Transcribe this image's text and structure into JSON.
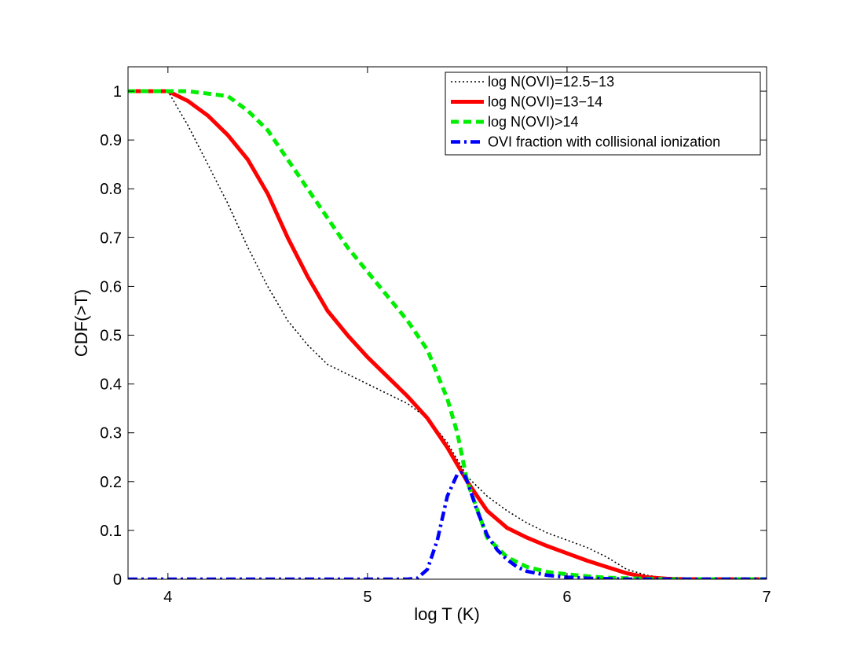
{
  "chart_data": {
    "type": "line",
    "title": "",
    "xlabel": "log T (K)",
    "ylabel": "CDF(>T)",
    "xlim": [
      3.8,
      7
    ],
    "ylim": [
      0,
      1.05
    ],
    "xticks": [
      4,
      5,
      6,
      7
    ],
    "xtick_labels": [
      "4",
      "5",
      "6",
      "7"
    ],
    "yticks": [
      0,
      0.1,
      0.2,
      0.3,
      0.4,
      0.5,
      0.6,
      0.7,
      0.8,
      0.9,
      1
    ],
    "ytick_labels": [
      "0",
      "0.1",
      "0.2",
      "0.3",
      "0.4",
      "0.5",
      "0.6",
      "0.7",
      "0.8",
      "0.9",
      "1"
    ],
    "grid": false,
    "legend_position": "top-right",
    "series": [
      {
        "name": "log N(OVI)=12.5−13",
        "color": "#000000",
        "style": "dotted",
        "x": [
          3.8,
          4.0,
          4.1,
          4.2,
          4.3,
          4.4,
          4.5,
          4.6,
          4.7,
          4.8,
          4.9,
          5.0,
          5.1,
          5.2,
          5.3,
          5.4,
          5.5,
          5.6,
          5.7,
          5.8,
          5.9,
          6.0,
          6.1,
          6.2,
          6.3,
          6.4,
          6.5,
          6.6,
          7.0
        ],
        "y": [
          1.0,
          1.0,
          0.93,
          0.85,
          0.77,
          0.68,
          0.6,
          0.53,
          0.48,
          0.44,
          0.42,
          0.4,
          0.38,
          0.36,
          0.33,
          0.28,
          0.21,
          0.17,
          0.14,
          0.115,
          0.095,
          0.08,
          0.065,
          0.045,
          0.02,
          0.008,
          0.002,
          0.0,
          0.0
        ]
      },
      {
        "name": "log N(OVI)=13−14",
        "color": "#ff0000",
        "style": "solid",
        "x": [
          3.8,
          4.0,
          4.1,
          4.2,
          4.3,
          4.4,
          4.5,
          4.6,
          4.7,
          4.8,
          4.9,
          5.0,
          5.1,
          5.2,
          5.3,
          5.4,
          5.5,
          5.6,
          5.7,
          5.8,
          5.9,
          6.0,
          6.1,
          6.2,
          6.3,
          6.4,
          6.5,
          6.6,
          7.0
        ],
        "y": [
          1.0,
          1.0,
          0.98,
          0.95,
          0.91,
          0.86,
          0.79,
          0.7,
          0.62,
          0.55,
          0.5,
          0.455,
          0.415,
          0.375,
          0.33,
          0.27,
          0.2,
          0.14,
          0.105,
          0.085,
          0.068,
          0.053,
          0.038,
          0.025,
          0.012,
          0.004,
          0.001,
          0.0,
          0.0
        ]
      },
      {
        "name": "log N(OVI)>14",
        "color": "#00ee00",
        "style": "dashed",
        "x": [
          3.8,
          4.0,
          4.1,
          4.2,
          4.3,
          4.4,
          4.5,
          4.6,
          4.7,
          4.8,
          4.9,
          5.0,
          5.1,
          5.2,
          5.3,
          5.4,
          5.45,
          5.5,
          5.6,
          5.7,
          5.8,
          5.9,
          6.0,
          6.1,
          6.2,
          6.3,
          6.4,
          6.5,
          7.0
        ],
        "y": [
          1.0,
          1.0,
          1.0,
          0.995,
          0.99,
          0.96,
          0.92,
          0.86,
          0.8,
          0.74,
          0.68,
          0.63,
          0.58,
          0.53,
          0.47,
          0.37,
          0.3,
          0.2,
          0.085,
          0.045,
          0.025,
          0.015,
          0.01,
          0.006,
          0.003,
          0.002,
          0.001,
          0.0,
          0.0
        ]
      },
      {
        "name": "OVI fraction with collisional ionization",
        "color": "#0000ff",
        "style": "dashdot",
        "x": [
          3.8,
          5.2,
          5.25,
          5.3,
          5.35,
          5.4,
          5.45,
          5.48,
          5.5,
          5.55,
          5.6,
          5.65,
          5.7,
          5.75,
          5.8,
          5.9,
          6.0,
          6.1,
          6.2,
          6.3,
          6.4,
          7.0
        ],
        "y": [
          0.0,
          0.0,
          0.002,
          0.02,
          0.08,
          0.17,
          0.215,
          0.22,
          0.2,
          0.14,
          0.09,
          0.06,
          0.04,
          0.025,
          0.016,
          0.008,
          0.004,
          0.002,
          0.001,
          0.0,
          0.0,
          0.0
        ]
      }
    ]
  }
}
